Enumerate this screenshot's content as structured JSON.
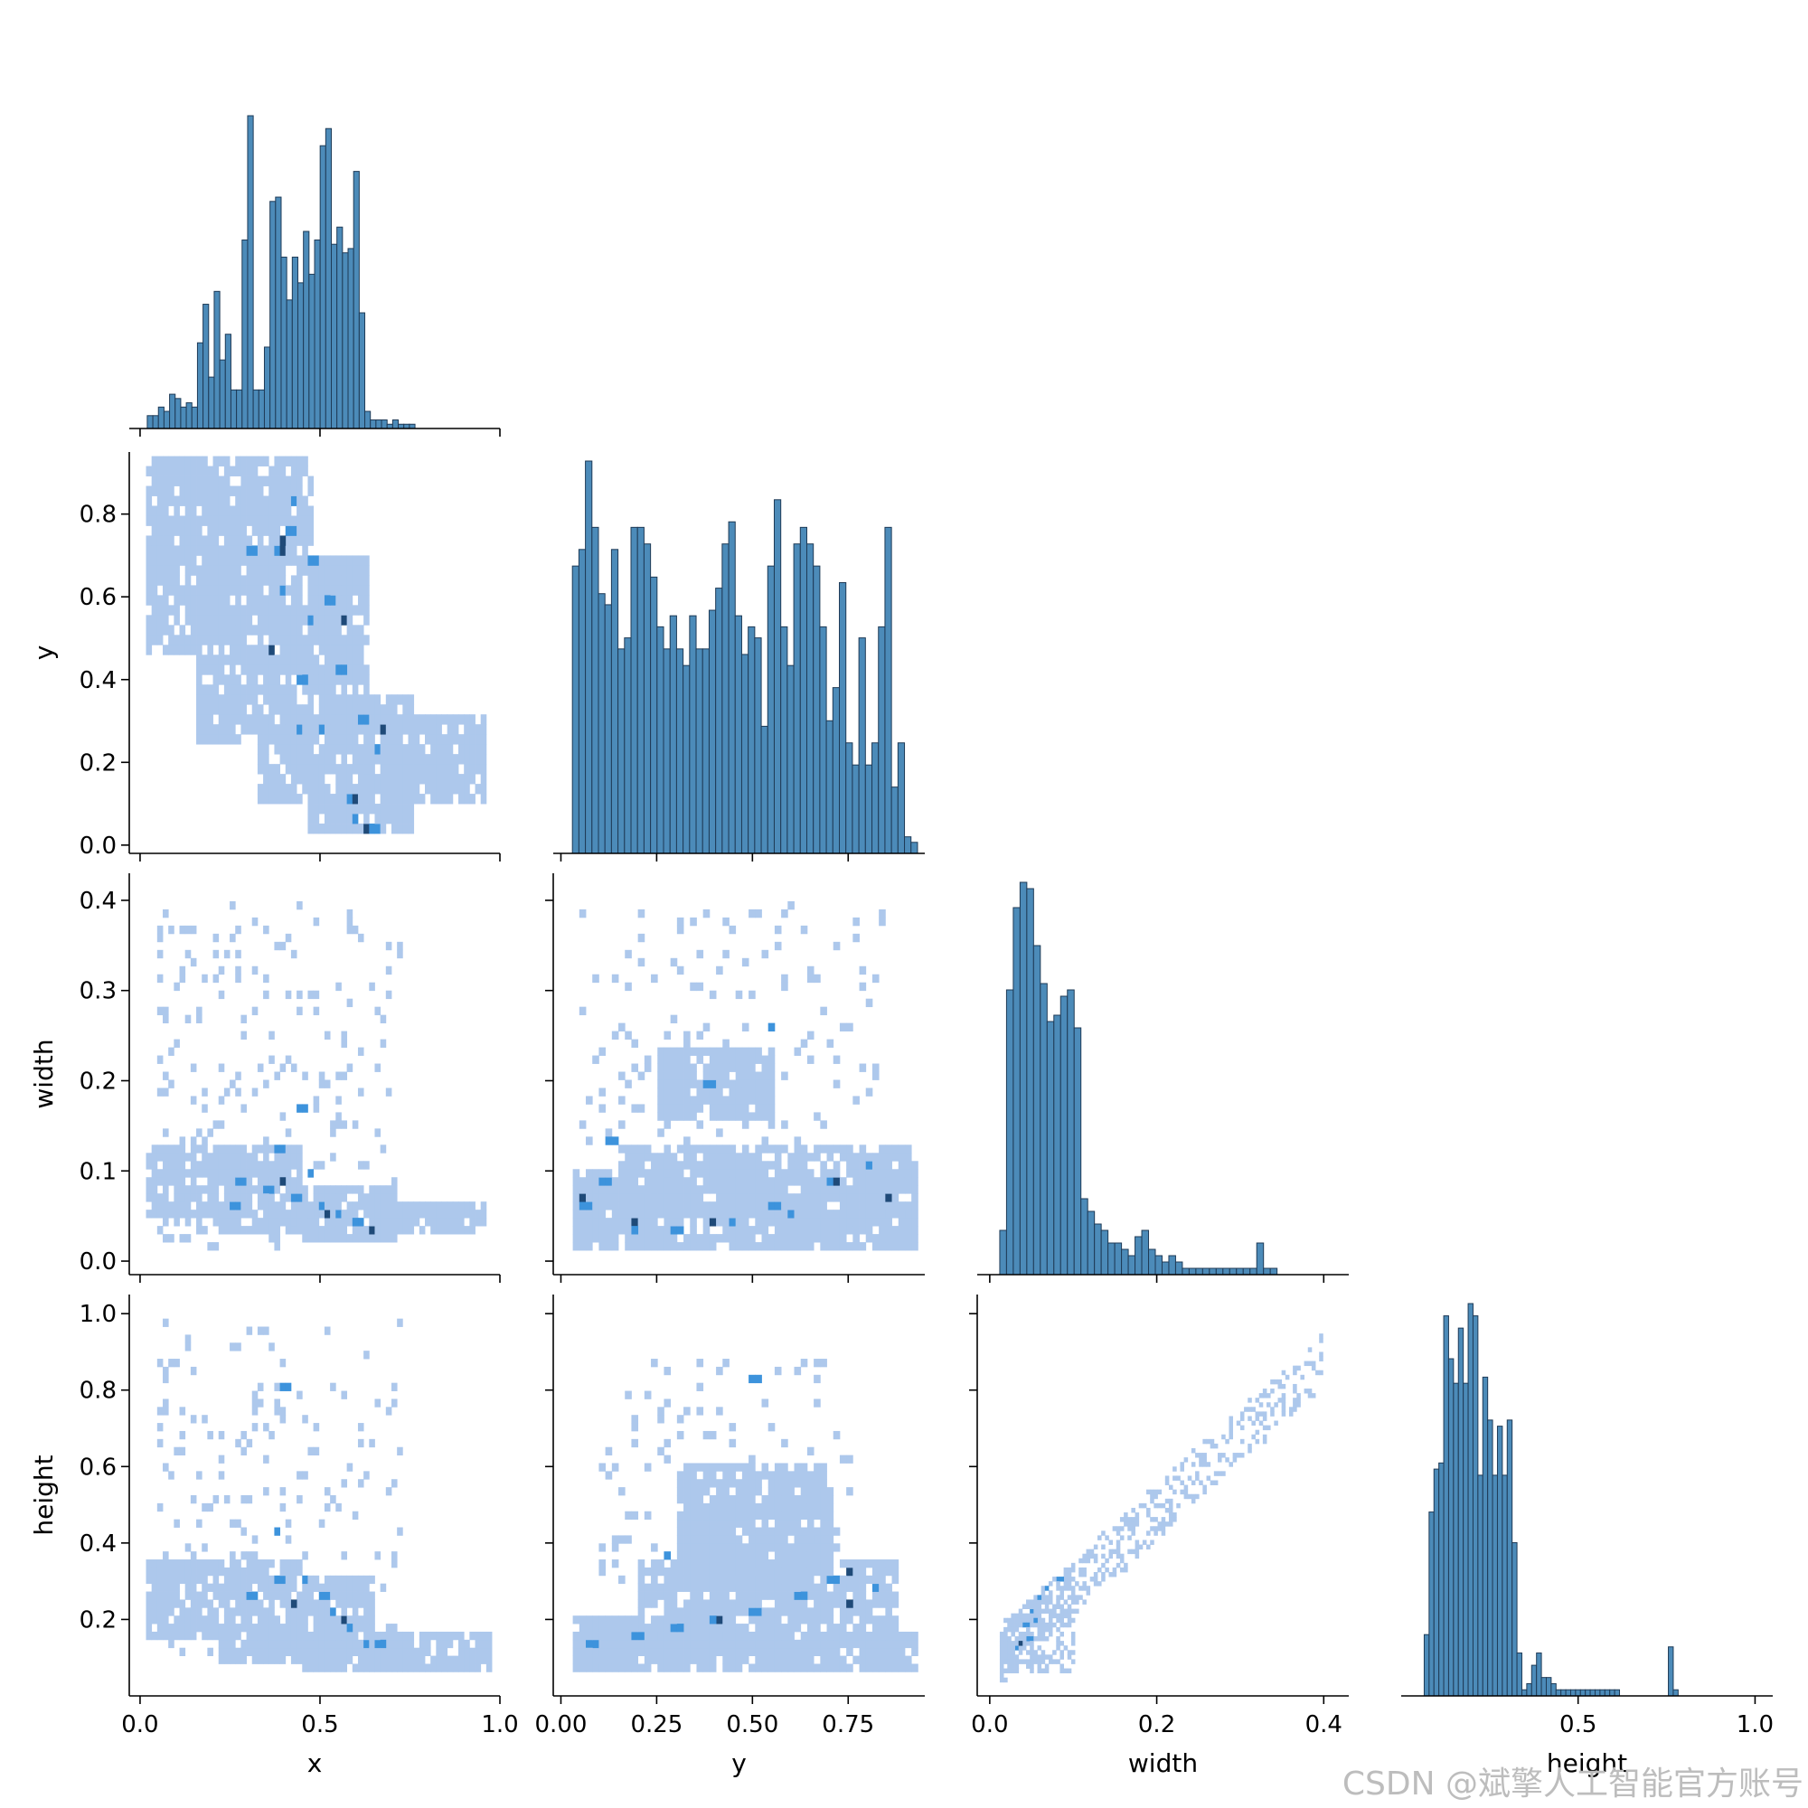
{
  "figure": {
    "colors": {
      "bar_fill": "#4c8bb9",
      "bar_edge": "#1f3b57",
      "heat_light": "#adc8ec",
      "heat_mid": "#3d93dc",
      "heat_dark": "#1f4a78"
    }
  },
  "watermark": "CSDN @斌擎人工智能官方账号",
  "chart_data": {
    "type": "heatmap",
    "kind": "pairplot-corner-histograms",
    "variables": [
      "x",
      "y",
      "width",
      "height"
    ],
    "axis_labels": {
      "x": "x",
      "y": "y",
      "width": "width",
      "height": "height"
    },
    "ranges": {
      "x": [
        -0.03,
        1.0
      ],
      "y": [
        -0.02,
        0.95
      ],
      "width": [
        -0.015,
        0.43
      ],
      "height": [
        0.0,
        1.05
      ]
    },
    "ticks": {
      "x": {
        "values": [
          0.0,
          0.5,
          1.0
        ],
        "labels": [
          "0.0",
          "0.5",
          "1.0"
        ]
      },
      "y_bottom": {
        "values": [
          0.0,
          0.25,
          0.5,
          0.75
        ],
        "labels": [
          "0.00",
          "0.25",
          "0.50",
          "0.75"
        ]
      },
      "y_left": {
        "values": [
          0.0,
          0.2,
          0.4,
          0.6,
          0.8
        ],
        "labels": [
          "0.0",
          "0.2",
          "0.4",
          "0.6",
          "0.8"
        ]
      },
      "width": {
        "values": [
          0.0,
          0.1,
          0.2,
          0.3,
          0.4
        ],
        "labels": [
          "0.0",
          "0.1",
          "0.2",
          "0.3",
          "0.4"
        ]
      },
      "width_bottom": {
        "values": [
          0.0,
          0.2,
          0.4
        ],
        "labels": [
          "0.0",
          "0.2",
          "0.4"
        ]
      },
      "height": {
        "values": [
          0.2,
          0.4,
          0.6,
          0.8,
          1.0
        ],
        "labels": [
          "0.2",
          "0.4",
          "0.6",
          "0.8",
          "1.0"
        ]
      },
      "height_bottom": {
        "values": [
          0.5,
          1.0
        ],
        "labels": [
          "0.5",
          "1.0"
        ]
      }
    },
    "histograms": {
      "x": {
        "bin_start": 0.02,
        "bin_width": 0.0155,
        "counts": [
          0.03,
          0.03,
          0.05,
          0.04,
          0.08,
          0.07,
          0.05,
          0.06,
          0.05,
          0.2,
          0.29,
          0.12,
          0.32,
          0.16,
          0.22,
          0.09,
          0.09,
          0.44,
          0.73,
          0.09,
          0.09,
          0.19,
          0.53,
          0.54,
          0.4,
          0.3,
          0.4,
          0.34,
          0.46,
          0.36,
          0.44,
          0.66,
          0.7,
          0.43,
          0.47,
          0.41,
          0.42,
          0.6,
          0.27,
          0.04,
          0.02,
          0.02,
          0.02,
          0.01,
          0.02,
          0.01,
          0.01,
          0.01,
          0.0,
          0.0
        ]
      },
      "y": {
        "bin_start": 0.03,
        "bin_width": 0.017,
        "counts": [
          0.52,
          0.55,
          0.71,
          0.59,
          0.47,
          0.45,
          0.55,
          0.37,
          0.39,
          0.59,
          0.59,
          0.56,
          0.5,
          0.41,
          0.37,
          0.43,
          0.37,
          0.34,
          0.43,
          0.37,
          0.37,
          0.44,
          0.48,
          0.56,
          0.6,
          0.43,
          0.36,
          0.41,
          0.39,
          0.23,
          0.52,
          0.64,
          0.41,
          0.34,
          0.56,
          0.59,
          0.56,
          0.52,
          0.41,
          0.24,
          0.3,
          0.49,
          0.2,
          0.16,
          0.39,
          0.16,
          0.2,
          0.41,
          0.59,
          0.12,
          0.2,
          0.03,
          0.02
        ]
      },
      "width": {
        "bin_start": 0.012,
        "bin_width": 0.0081,
        "counts": [
          0.07,
          0.45,
          0.58,
          0.62,
          0.61,
          0.52,
          0.46,
          0.4,
          0.41,
          0.44,
          0.45,
          0.39,
          0.12,
          0.1,
          0.08,
          0.07,
          0.05,
          0.05,
          0.04,
          0.03,
          0.06,
          0.07,
          0.04,
          0.03,
          0.02,
          0.03,
          0.02,
          0.01,
          0.01,
          0.01,
          0.01,
          0.01,
          0.01,
          0.01,
          0.01,
          0.01,
          0.01,
          0.01,
          0.05,
          0.01,
          0.01
        ]
      },
      "height": {
        "bin_start": 0.065,
        "bin_width": 0.0138,
        "counts": [
          0.1,
          0.3,
          0.37,
          0.38,
          0.62,
          0.55,
          0.51,
          0.6,
          0.51,
          0.64,
          0.62,
          0.36,
          0.52,
          0.45,
          0.36,
          0.44,
          0.36,
          0.45,
          0.25,
          0.07,
          0.01,
          0.02,
          0.05,
          0.07,
          0.03,
          0.03,
          0.02,
          0.01,
          0.01,
          0.01,
          0.01,
          0.01,
          0.01,
          0.01,
          0.01,
          0.01,
          0.01,
          0.01,
          0.01,
          0.01,
          0.0,
          0.0,
          0.0,
          0.0,
          0.0,
          0.0,
          0.0,
          0.0,
          0.0,
          0.0,
          0.08,
          0.01,
          0.0,
          0.0
        ]
      }
    },
    "heatmaps": [
      {
        "x_var": "x",
        "y_var": "y",
        "style": "block",
        "bin_w": 0.0155,
        "bin_h": 0.024,
        "bands": [
          {
            "x": [
              0.02,
              0.15
            ],
            "y": [
              0.45,
              0.93
            ]
          },
          {
            "x": [
              0.15,
              0.32
            ],
            "y": [
              0.25,
              0.93
            ]
          },
          {
            "x": [
              0.32,
              0.46
            ],
            "y": [
              0.1,
              0.93
            ]
          },
          {
            "x": [
              0.46,
              0.62
            ],
            "y": [
              0.03,
              0.7
            ]
          },
          {
            "x": [
              0.62,
              0.75
            ],
            "y": [
              0.03,
              0.35
            ]
          },
          {
            "x": [
              0.75,
              0.96
            ],
            "y": [
              0.1,
              0.3
            ]
          }
        ],
        "hot": [
          [
            0.38,
            0.72
          ],
          [
            0.41,
            0.76
          ],
          [
            0.39,
            0.62
          ],
          [
            0.47,
            0.68
          ],
          [
            0.48,
            0.55
          ],
          [
            0.52,
            0.58
          ],
          [
            0.55,
            0.43
          ],
          [
            0.45,
            0.4
          ],
          [
            0.62,
            0.31
          ],
          [
            0.66,
            0.22
          ],
          [
            0.58,
            0.12
          ],
          [
            0.6,
            0.07
          ],
          [
            0.64,
            0.05
          ],
          [
            0.5,
            0.29
          ],
          [
            0.45,
            0.27
          ],
          [
            0.43,
            0.82
          ],
          [
            0.3,
            0.7
          ]
        ],
        "dark": [
          [
            0.39,
            0.7
          ],
          [
            0.4,
            0.73
          ],
          [
            0.6,
            0.1
          ],
          [
            0.63,
            0.03
          ],
          [
            0.68,
            0.28
          ],
          [
            0.56,
            0.54
          ],
          [
            0.36,
            0.48
          ]
        ]
      },
      {
        "x_var": "x",
        "y_var": "width",
        "style": "block",
        "bin_w": 0.0155,
        "bin_h": 0.009,
        "bands": [
          {
            "x": [
              0.02,
              0.22
            ],
            "y": [
              0.05,
              0.13
            ]
          },
          {
            "x": [
              0.22,
              0.45
            ],
            "y": [
              0.03,
              0.12
            ]
          },
          {
            "x": [
              0.45,
              0.7
            ],
            "y": [
              0.02,
              0.08
            ]
          },
          {
            "x": [
              0.7,
              0.96
            ],
            "y": [
              0.03,
              0.06
            ]
          }
        ],
        "sparse": {
          "x": [
            0.05,
            0.95
          ],
          "y": [
            0.02,
            0.4
          ],
          "count": 240,
          "decay": "x"
        },
        "hot": [
          [
            0.27,
            0.09
          ],
          [
            0.35,
            0.08
          ],
          [
            0.43,
            0.07
          ],
          [
            0.5,
            0.06
          ],
          [
            0.55,
            0.05
          ],
          [
            0.6,
            0.04
          ],
          [
            0.44,
            0.17
          ],
          [
            0.38,
            0.12
          ],
          [
            0.48,
            0.1
          ],
          [
            0.26,
            0.06
          ]
        ],
        "dark": [
          [
            0.65,
            0.03
          ],
          [
            0.52,
            0.05
          ],
          [
            0.4,
            0.09
          ]
        ]
      },
      {
        "x_var": "y",
        "y_var": "width",
        "style": "block",
        "bin_w": 0.017,
        "bin_h": 0.009,
        "bands": [
          {
            "x": [
              0.03,
              0.92
            ],
            "y": [
              0.015,
              0.06
            ]
          },
          {
            "x": [
              0.15,
              0.92
            ],
            "y": [
              0.05,
              0.13
            ]
          },
          {
            "x": [
              0.03,
              0.3
            ],
            "y": [
              0.05,
              0.1
            ]
          },
          {
            "x": [
              0.25,
              0.55
            ],
            "y": [
              0.16,
              0.24
            ]
          }
        ],
        "sparse": {
          "x": [
            0.05,
            0.85
          ],
          "y": [
            0.12,
            0.4
          ],
          "count": 130,
          "decay": "none"
        },
        "hot": [
          [
            0.1,
            0.09
          ],
          [
            0.06,
            0.06
          ],
          [
            0.38,
            0.2
          ],
          [
            0.55,
            0.26
          ],
          [
            0.2,
            0.03
          ],
          [
            0.3,
            0.03
          ],
          [
            0.45,
            0.04
          ],
          [
            0.6,
            0.05
          ],
          [
            0.7,
            0.09
          ],
          [
            0.8,
            0.11
          ],
          [
            0.55,
            0.06
          ],
          [
            0.12,
            0.13
          ]
        ],
        "dark": [
          [
            0.05,
            0.07
          ],
          [
            0.4,
            0.04
          ],
          [
            0.72,
            0.09
          ],
          [
            0.85,
            0.07
          ],
          [
            0.2,
            0.04
          ]
        ]
      },
      {
        "x_var": "x",
        "y_var": "height",
        "style": "block",
        "bin_w": 0.0155,
        "bin_h": 0.021,
        "bands": [
          {
            "x": [
              0.02,
              0.22
            ],
            "y": [
              0.14,
              0.33
            ]
          },
          {
            "x": [
              0.22,
              0.45
            ],
            "y": [
              0.08,
              0.34
            ]
          },
          {
            "x": [
              0.45,
              0.65
            ],
            "y": [
              0.06,
              0.3
            ]
          },
          {
            "x": [
              0.65,
              0.96
            ],
            "y": [
              0.06,
              0.16
            ]
          }
        ],
        "sparse": {
          "x": [
            0.05,
            0.95
          ],
          "y": [
            0.1,
            0.98
          ],
          "count": 210,
          "decay": "x"
        },
        "hot": [
          [
            0.3,
            0.26
          ],
          [
            0.38,
            0.3
          ],
          [
            0.46,
            0.3
          ],
          [
            0.53,
            0.22
          ],
          [
            0.58,
            0.18
          ],
          [
            0.63,
            0.14
          ],
          [
            0.66,
            0.14
          ],
          [
            0.5,
            0.27
          ],
          [
            0.4,
            0.8
          ],
          [
            0.38,
            0.44
          ]
        ],
        "dark": [
          [
            0.56,
            0.2
          ],
          [
            0.42,
            0.24
          ]
        ]
      },
      {
        "x_var": "y",
        "y_var": "height",
        "style": "block",
        "bin_w": 0.017,
        "bin_h": 0.021,
        "bands": [
          {
            "x": [
              0.03,
              0.92
            ],
            "y": [
              0.06,
              0.15
            ]
          },
          {
            "x": [
              0.2,
              0.88
            ],
            "y": [
              0.14,
              0.34
            ]
          },
          {
            "x": [
              0.03,
              0.2
            ],
            "y": [
              0.06,
              0.2
            ]
          },
          {
            "x": [
              0.3,
              0.7
            ],
            "y": [
              0.3,
              0.6
            ]
          }
        ],
        "sparse": {
          "x": [
            0.1,
            0.75
          ],
          "y": [
            0.3,
            0.88
          ],
          "count": 120,
          "decay": "none"
        },
        "hot": [
          [
            0.08,
            0.13
          ],
          [
            0.2,
            0.16
          ],
          [
            0.3,
            0.17
          ],
          [
            0.4,
            0.2
          ],
          [
            0.5,
            0.22
          ],
          [
            0.62,
            0.27
          ],
          [
            0.7,
            0.3
          ],
          [
            0.82,
            0.28
          ],
          [
            0.5,
            0.82
          ],
          [
            0.28,
            0.36
          ]
        ],
        "dark": [
          [
            0.42,
            0.19
          ],
          [
            0.75,
            0.32
          ],
          [
            0.76,
            0.25
          ]
        ]
      },
      {
        "x_var": "width",
        "y_var": "height",
        "style": "fine",
        "bin_w": 0.0045,
        "bin_h": 0.012,
        "band_model": {
          "x": [
            0.012,
            0.4
          ],
          "slope": 2.0,
          "intercept": 0.08,
          "spread": 0.07,
          "count": 520
        },
        "dense": {
          "x": [
            0.015,
            0.1
          ],
          "y": [
            0.06,
            0.32
          ],
          "count": 260
        },
        "hot": [
          [
            0.03,
            0.12
          ],
          [
            0.04,
            0.18
          ],
          [
            0.05,
            0.22
          ],
          [
            0.06,
            0.26
          ],
          [
            0.07,
            0.28
          ],
          [
            0.08,
            0.3
          ],
          [
            0.045,
            0.15
          ],
          [
            0.055,
            0.2
          ]
        ],
        "dark": [
          [
            0.035,
            0.14
          ]
        ]
      }
    ]
  }
}
